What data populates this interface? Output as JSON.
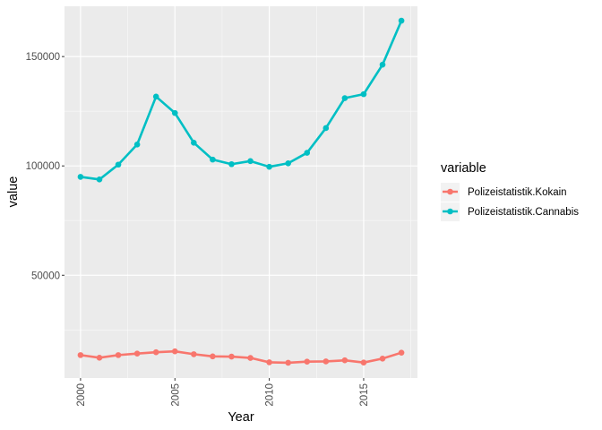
{
  "chart_data": {
    "type": "line",
    "xlabel": "Year",
    "ylabel": "value",
    "x": [
      2000,
      2001,
      2002,
      2003,
      2004,
      2005,
      2006,
      2007,
      2008,
      2009,
      2010,
      2011,
      2012,
      2013,
      2014,
      2015,
      2016,
      2017
    ],
    "xlim": [
      1999.15,
      2017.85
    ],
    "ylim": [
      3000,
      173000
    ],
    "x_ticks": [
      2000,
      2005,
      2010,
      2015
    ],
    "x_tick_labels": [
      "2000",
      "2005",
      "2010",
      "2015"
    ],
    "y_ticks": [
      50000,
      100000,
      150000
    ],
    "y_tick_labels": [
      "50000",
      "100000",
      "150000"
    ],
    "grid": true,
    "legend": {
      "title": "variable",
      "position": "right"
    },
    "series": [
      {
        "name": "Polizeistatistik.Kokain",
        "color": "#F8766D",
        "values": [
          13500,
          12300,
          13500,
          14200,
          14800,
          15200,
          13900,
          12900,
          12800,
          12200,
          10200,
          10000,
          10500,
          10600,
          11100,
          10100,
          11900,
          14600
        ]
      },
      {
        "name": "Polizeistatistik.Cannabis",
        "color": "#00BFC4",
        "values": [
          95000,
          93800,
          100600,
          109800,
          131700,
          124200,
          110600,
          102900,
          100800,
          102200,
          99600,
          101200,
          106000,
          117300,
          131000,
          132800,
          146300,
          166400
        ]
      }
    ]
  }
}
